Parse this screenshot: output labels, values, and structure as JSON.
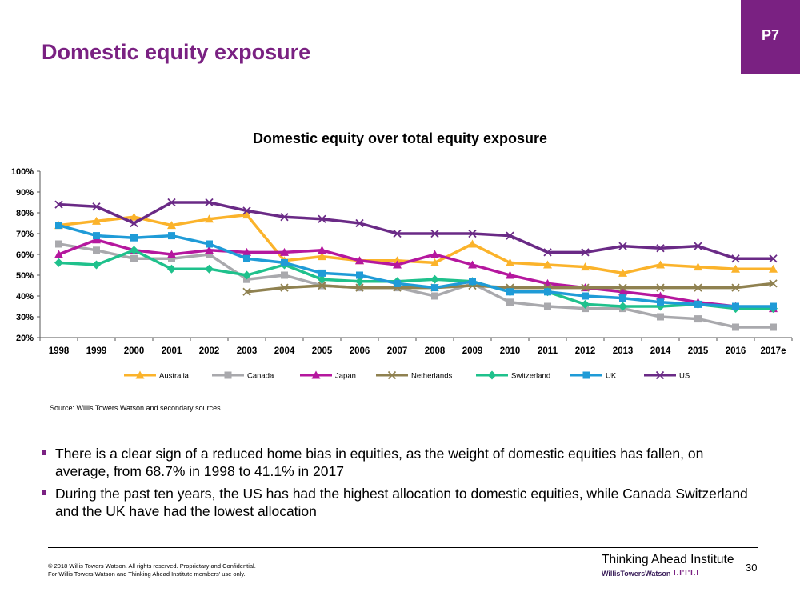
{
  "slide": {
    "title": "Domestic equity exposure",
    "tag": "P7",
    "source": "Source: Willis Towers Watson and secondary sources",
    "bullets": [
      "There is a clear sign of a reduced home bias in equities, as the weight of domestic equities has fallen, on average, from 68.7% in 1998 to 41.1% in 2017",
      "During the past ten years, the US has had the highest allocation to domestic equities, while Canada Switzerland and the UK have had the lowest allocation"
    ],
    "copyright_line1": "© 2018 Willis Towers Watson. All rights reserved. Proprietary and Confidential.",
    "copyright_line2": "For Willis Towers Watson and Thinking Ahead Institute members' use only.",
    "institute": "Thinking Ahead Institute",
    "brand": "WillisTowersWatson",
    "brand_mark": "I.I'I'I.I",
    "page_number": "30"
  },
  "colors": {
    "accent": "#7a2182",
    "Australia": "#fbb32b",
    "Canada": "#a9a9ad",
    "Japan": "#b5179e",
    "Netherlands": "#8f8150",
    "Switzerland": "#1fc18c",
    "UK": "#1f9bd7",
    "US": "#6a2a86"
  },
  "chart_data": {
    "type": "line",
    "title": "Domestic equity over total equity exposure",
    "xlabel": "",
    "ylabel": "",
    "categories": [
      "1998",
      "1999",
      "2000",
      "2001",
      "2002",
      "2003",
      "2004",
      "2005",
      "2006",
      "2007",
      "2008",
      "2009",
      "2010",
      "2011",
      "2012",
      "2013",
      "2014",
      "2015",
      "2016",
      "2017e"
    ],
    "yticks": [
      "20%",
      "30%",
      "40%",
      "50%",
      "60%",
      "70%",
      "80%",
      "90%",
      "100%"
    ],
    "ylim": [
      20,
      100
    ],
    "legend_position": "bottom",
    "series": [
      {
        "name": "Australia",
        "marker": "triangle",
        "values": [
          74,
          76,
          78,
          74,
          77,
          79,
          57,
          59,
          57,
          57,
          56,
          65,
          56,
          55,
          54,
          51,
          55,
          54,
          53,
          53
        ]
      },
      {
        "name": "Canada",
        "marker": "square",
        "values": [
          65,
          62,
          58,
          58,
          60,
          48,
          50,
          45,
          44,
          44,
          40,
          46,
          37,
          35,
          34,
          34,
          30,
          29,
          25,
          25
        ]
      },
      {
        "name": "Japan",
        "marker": "triangle",
        "values": [
          60,
          67,
          62,
          60,
          62,
          61,
          61,
          62,
          57,
          55,
          60,
          55,
          50,
          46,
          44,
          42,
          40,
          37,
          35,
          34
        ]
      },
      {
        "name": "Netherlands",
        "marker": "x",
        "values": [
          null,
          null,
          null,
          null,
          null,
          42,
          44,
          45,
          44,
          44,
          44,
          45,
          44,
          44,
          44,
          44,
          44,
          44,
          44,
          46
        ]
      },
      {
        "name": "Switzerland",
        "marker": "diamond",
        "values": [
          56,
          55,
          62,
          53,
          53,
          50,
          55,
          48,
          47,
          47,
          48,
          47,
          42,
          42,
          36,
          35,
          35,
          36,
          34,
          34
        ]
      },
      {
        "name": "UK",
        "marker": "square",
        "values": [
          74,
          69,
          68,
          69,
          65,
          58,
          56,
          51,
          50,
          46,
          44,
          47,
          42,
          42,
          40,
          39,
          37,
          36,
          35,
          35
        ]
      },
      {
        "name": "US",
        "marker": "x",
        "values": [
          84,
          83,
          75,
          85,
          85,
          81,
          78,
          77,
          75,
          70,
          70,
          70,
          69,
          61,
          61,
          64,
          63,
          64,
          58,
          58
        ]
      }
    ]
  }
}
